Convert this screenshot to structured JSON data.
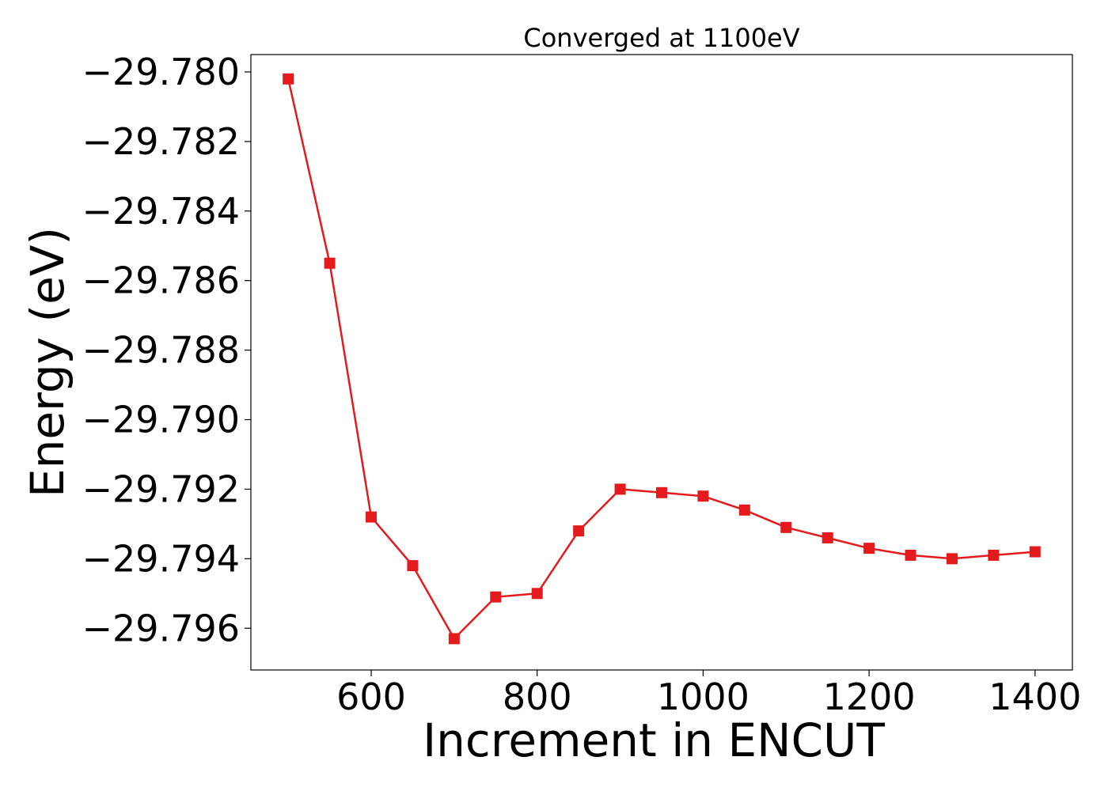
{
  "chart_data": {
    "type": "line",
    "title": "Converged at 1100eV",
    "xlabel": "Increment in ENCUT",
    "ylabel": "Energy (eV)",
    "xlim": [
      455,
      1445
    ],
    "ylim": [
      -29.7972,
      -29.7795
    ],
    "xticks": [
      600,
      800,
      1000,
      1200,
      1400
    ],
    "xtick_labels": [
      "600",
      "800",
      "1000",
      "1200",
      "1400"
    ],
    "yticks": [
      -29.78,
      -29.782,
      -29.784,
      -29.786,
      -29.788,
      -29.79,
      -29.792,
      -29.794,
      -29.796
    ],
    "ytick_labels": [
      "−29.780",
      "−29.782",
      "−29.784",
      "−29.786",
      "−29.788",
      "−29.790",
      "−29.792",
      "−29.794",
      "−29.796"
    ],
    "grid": false,
    "series": [
      {
        "color": "#e41a1c",
        "marker": "square",
        "x": [
          500,
          550,
          600,
          650,
          700,
          750,
          800,
          850,
          900,
          950,
          1000,
          1050,
          1100,
          1150,
          1200,
          1250,
          1300,
          1350,
          1400
        ],
        "y": [
          -29.7802,
          -29.7855,
          -29.7928,
          -29.7942,
          -29.7963,
          -29.7951,
          -29.795,
          -29.7932,
          -29.792,
          -29.7921,
          -29.7922,
          -29.7926,
          -29.7931,
          -29.7934,
          -29.7937,
          -29.7939,
          -29.794,
          -29.7939,
          -29.7938
        ]
      }
    ]
  }
}
